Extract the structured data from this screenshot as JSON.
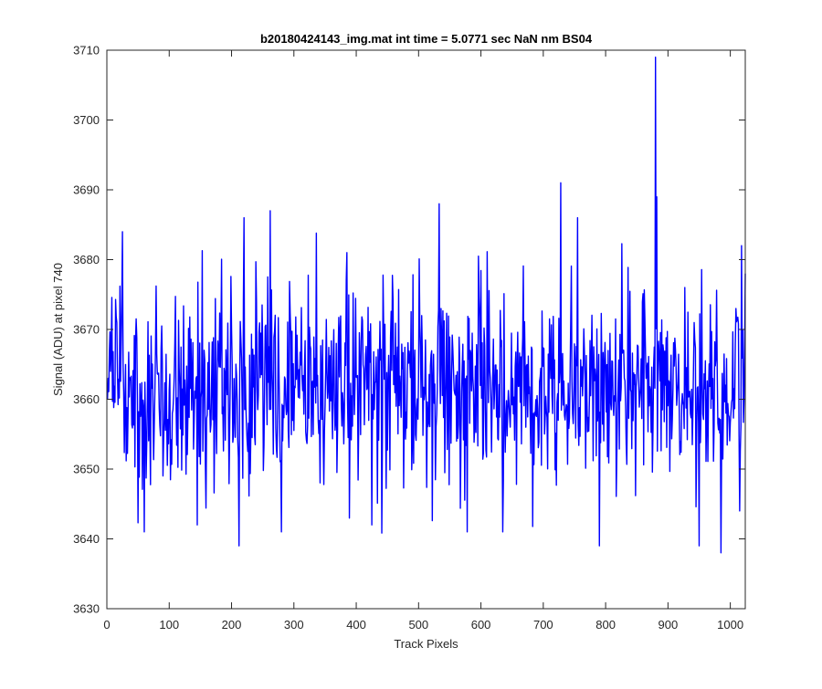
{
  "chart_data": {
    "type": "line",
    "title": "b20180424143_img.mat int time = 5.0771 sec  NaN nm BS04",
    "xlabel": "Track Pixels",
    "ylabel": "Signal (ADU) at pixel 740",
    "xlim": [
      0,
      1024
    ],
    "ylim": [
      3630,
      3710
    ],
    "xticks": [
      0,
      100,
      200,
      300,
      400,
      500,
      600,
      700,
      800,
      900,
      1000
    ],
    "yticks": [
      3630,
      3640,
      3650,
      3660,
      3670,
      3680,
      3690,
      3700,
      3710
    ],
    "xtick_labels": [
      "0",
      "100",
      "200",
      "300",
      "400",
      "500",
      "600",
      "700",
      "800",
      "900",
      "1000"
    ],
    "ytick_labels": [
      "3630",
      "3640",
      "3650",
      "3660",
      "3670",
      "3680",
      "3690",
      "3700",
      "3710"
    ],
    "grid": false,
    "series": [
      {
        "color": "#0000ff",
        "x_start": 1,
        "x_step": 1,
        "n_points": 1024,
        "baseline": 3662,
        "approx_range": [
          3638,
          3709
        ],
        "notable_points": [
          {
            "x": 1,
            "y": 3660
          },
          {
            "x": 25,
            "y": 3684
          },
          {
            "x": 60,
            "y": 3641
          },
          {
            "x": 145,
            "y": 3642
          },
          {
            "x": 212,
            "y": 3639
          },
          {
            "x": 220,
            "y": 3686
          },
          {
            "x": 262,
            "y": 3687
          },
          {
            "x": 280,
            "y": 3641
          },
          {
            "x": 385,
            "y": 3681
          },
          {
            "x": 425,
            "y": 3642
          },
          {
            "x": 533,
            "y": 3688
          },
          {
            "x": 578,
            "y": 3641
          },
          {
            "x": 635,
            "y": 3641
          },
          {
            "x": 728,
            "y": 3691
          },
          {
            "x": 755,
            "y": 3686
          },
          {
            "x": 790,
            "y": 3639
          },
          {
            "x": 880,
            "y": 3709
          },
          {
            "x": 882,
            "y": 3689
          },
          {
            "x": 950,
            "y": 3639
          },
          {
            "x": 985,
            "y": 3638
          },
          {
            "x": 1015,
            "y": 3644
          },
          {
            "x": 1018,
            "y": 3682
          },
          {
            "x": 1024,
            "y": 3678
          }
        ]
      }
    ]
  }
}
